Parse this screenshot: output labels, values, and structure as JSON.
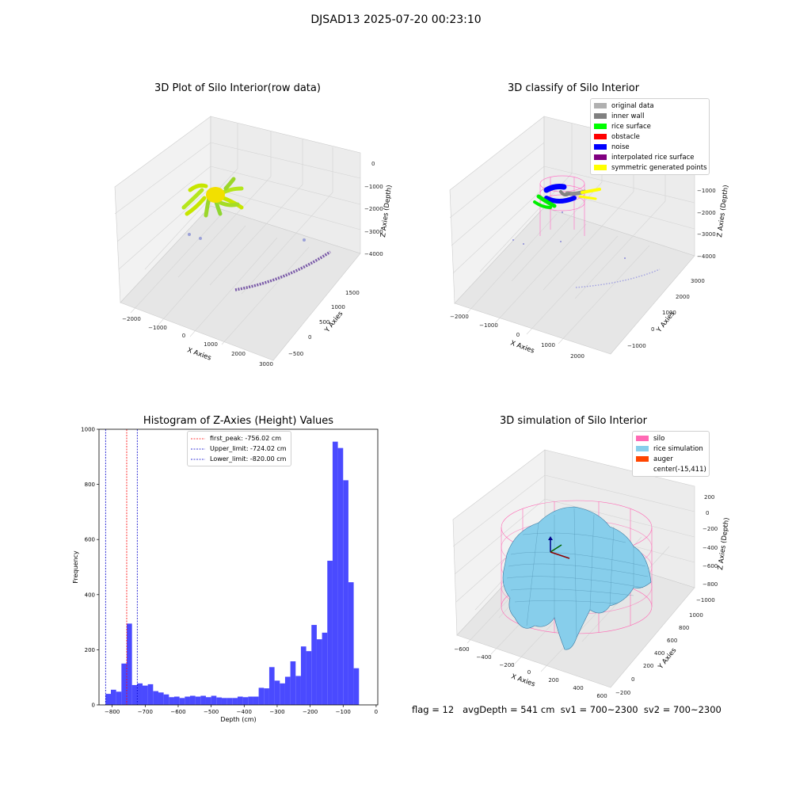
{
  "figure": {
    "suptitle": "DJSAD13 2025-07-20 00:23:10"
  },
  "footer": {
    "text": "flag = 12   avgDepth = 541 cm  sv1 = 700~2300  sv2 = 700~2300"
  },
  "colors": {
    "original_data": "#b0b0b0",
    "inner_wall": "#808080",
    "rice_surface": "#00ff00",
    "obstacle": "#ff0000",
    "noise": "#0000ff",
    "interpolated": "#800080",
    "symmetric": "#ffff00",
    "hist_bar": "#4a4aff",
    "first_peak_line": "#ff0000",
    "limit_line": "#0000cc",
    "silo": "#ff69b4",
    "rice_sim": "#87ceeb",
    "auger": "#ff4500"
  },
  "plot_raw": {
    "title": "3D Plot of Silo Interior(row data)",
    "xlabel": "X Axies",
    "ylabel": "Y Axies",
    "zlabel": "Z Axies (Depth)",
    "x_ticks": [
      "−2000",
      "−1000",
      "0",
      "1000",
      "2000",
      "3000"
    ],
    "y_ticks": [
      "−500",
      "0",
      "500",
      "1000",
      "1500"
    ],
    "z_ticks": [
      "0",
      "−1000",
      "−2000",
      "−3000",
      "−4000"
    ]
  },
  "plot_classify": {
    "title": "3D classify of Silo Interior",
    "xlabel": "X Axies",
    "ylabel": "Y Axies",
    "zlabel": "Z Axies (Depth)",
    "x_ticks": [
      "−2000",
      "−1000",
      "0",
      "1000",
      "2000"
    ],
    "y_ticks": [
      "−1000",
      "0",
      "1000",
      "2000",
      "3000"
    ],
    "z_ticks": [
      "−1000",
      "−2000",
      "−3000",
      "−4000"
    ],
    "legend": [
      {
        "label": "original data",
        "color": "#b0b0b0"
      },
      {
        "label": "inner wall",
        "color": "#808080"
      },
      {
        "label": "rice surface",
        "color": "#00ff00"
      },
      {
        "label": "obstacle",
        "color": "#ff0000"
      },
      {
        "label": "noise",
        "color": "#0000ff"
      },
      {
        "label": "interpolated rice surface",
        "color": "#800080"
      },
      {
        "label": "symmetric generated points",
        "color": "#ffff00"
      }
    ]
  },
  "plot_sim": {
    "title": "3D simulation of Silo Interior",
    "xlabel": "X Axies",
    "ylabel": "Y Axies",
    "zlabel": "Z Axies (Depth)",
    "x_ticks": [
      "−600",
      "−400",
      "−200",
      "0",
      "200",
      "400",
      "600"
    ],
    "y_ticks": [
      "−200",
      "0",
      "200",
      "400",
      "600",
      "800",
      "1000"
    ],
    "z_ticks": [
      "200",
      "0",
      "−200",
      "−400",
      "−600",
      "−800",
      "−1000"
    ],
    "legend": [
      {
        "label": "silo",
        "color": "#ff69b4"
      },
      {
        "label": "rice simulation",
        "color": "#87ceeb"
      },
      {
        "label": "auger",
        "color": "#ff4500"
      },
      {
        "label": "center(-15,411)",
        "color": ""
      }
    ]
  },
  "chart_data": {
    "type": "bar",
    "title": "Histogram of Z-Axies (Height) Values",
    "xlabel": "Depth (cm)",
    "ylabel": "Frequency",
    "xlim": [
      -840,
      5
    ],
    "ylim": [
      0,
      1000
    ],
    "x_ticks": [
      -800,
      -700,
      -600,
      -500,
      -400,
      -300,
      -200,
      -100,
      0
    ],
    "y_ticks": [
      0,
      200,
      400,
      600,
      800,
      1000
    ],
    "x_tick_labels": [
      "−800",
      "−700",
      "−600",
      "−500",
      "−400",
      "−300",
      "−200",
      "−100",
      "0"
    ],
    "y_tick_labels": [
      "0",
      "200",
      "400",
      "600",
      "800",
      "1000"
    ],
    "bin_width": 16,
    "bin_start": -820,
    "values": [
      40,
      55,
      48,
      150,
      295,
      72,
      78,
      70,
      75,
      50,
      45,
      38,
      28,
      30,
      25,
      30,
      33,
      30,
      33,
      28,
      33,
      27,
      25,
      25,
      25,
      30,
      28,
      30,
      30,
      62,
      60,
      137,
      88,
      78,
      102,
      158,
      105,
      212,
      195,
      290,
      238,
      262,
      523,
      955,
      932,
      815,
      445,
      133
    ],
    "vlines": [
      {
        "label": "first_peak: -756.02 cm",
        "x": -756.02,
        "color": "#ff0000"
      },
      {
        "label": "Upper_limit: -724.02 cm",
        "x": -724.02,
        "color": "#0000cc"
      },
      {
        "label": "Lower_limit: -820.00 cm",
        "x": -820.0,
        "color": "#0000cc"
      }
    ],
    "legend_position": "upper-center"
  }
}
